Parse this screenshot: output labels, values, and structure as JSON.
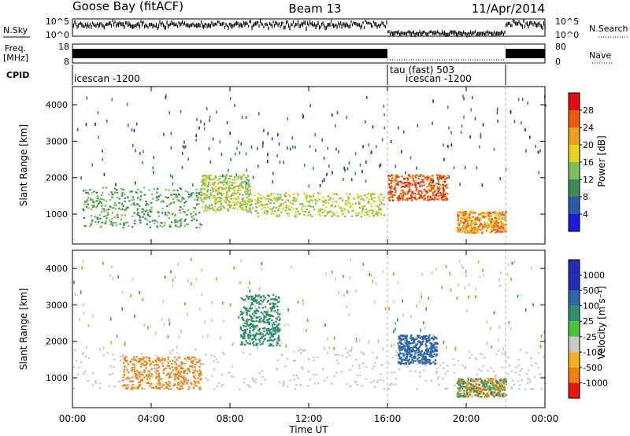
{
  "header": {
    "site": "Goose Bay (fitACF)",
    "beam": "Beam 13",
    "date": "11/Apr/2014"
  },
  "strip": {
    "nsky_label": "N.Sky",
    "nsky_top": "10^5",
    "nsky_bottom": "10^0",
    "nsearch_top": "10^5",
    "nsearch_bottom": "10^0",
    "nsearch_label": "N.Search",
    "freq_label": "Freq.",
    "freq_unit": "[MHz]",
    "freq_top": "18",
    "freq_bottom": "8",
    "nave_top": "80",
    "nave_bottom": "0",
    "nave_label": "Nave",
    "cpid_label": "CPID",
    "cpid_1": "icescan -1200",
    "cpid_2": "tau (fast) 503",
    "cpid_3": "icescan -1200"
  },
  "colorbars": {
    "power": {
      "label": "Power [dB]",
      "ticks": [
        "4",
        "8",
        "12",
        "16",
        "20",
        "24",
        "28"
      ],
      "colors": [
        "#1a1adc",
        "#2f58a6",
        "#3c8a55",
        "#7fbf5c",
        "#e8d21e",
        "#f0a01e",
        "#ef5a10",
        "#e01010"
      ]
    },
    "velocity": {
      "label": "Velocity [m s⁻¹]",
      "ticks": [
        "1000",
        "500",
        "100",
        "25",
        "-25",
        "-100",
        "-500",
        "-1000"
      ],
      "colors": [
        "#1f2fb0",
        "#2f66a8",
        "#2f8f6a",
        "#49c33c",
        "#c8c8c8",
        "#f0b020",
        "#ef8410",
        "#e81810"
      ]
    }
  },
  "chart_data": [
    {
      "type": "heatmap",
      "panel": "power",
      "title": "",
      "xlabel": "Time UT",
      "ylabel": "Slant Range [km]",
      "x_ticks": [
        "00:00",
        "04:00",
        "08:00",
        "12:00",
        "16:00",
        "20:00",
        "00:00"
      ],
      "y_ticks": [
        1000,
        2000,
        3000,
        4000
      ],
      "xlim_hours": [
        0,
        24
      ],
      "ylim_km": [
        180,
        4500
      ],
      "colorbar": "Power [dB]",
      "features": [
        {
          "t_start": 0.5,
          "t_end": 6.5,
          "range_km": [
            650,
            1750
          ],
          "power_db": [
            8,
            16
          ]
        },
        {
          "t_start": 6.5,
          "t_end": 9.0,
          "range_km": [
            1100,
            2100
          ],
          "power_db": [
            12,
            18
          ]
        },
        {
          "t_start": 9.0,
          "t_end": 15.8,
          "range_km": [
            950,
            1600
          ],
          "power_db": [
            12,
            20
          ]
        },
        {
          "t_start": 16.0,
          "t_end": 19.0,
          "range_km": [
            1400,
            2100
          ],
          "power_db": [
            22,
            30
          ]
        },
        {
          "t_start": 19.5,
          "t_end": 22.0,
          "range_km": [
            500,
            1100
          ],
          "power_db": [
            18,
            28
          ]
        }
      ]
    },
    {
      "type": "heatmap",
      "panel": "velocity",
      "title": "",
      "xlabel": "Time UT",
      "ylabel": "Slant Range [km]",
      "x_ticks": [
        "00:00",
        "04:00",
        "08:00",
        "12:00",
        "16:00",
        "20:00",
        "00:00"
      ],
      "y_ticks": [
        1000,
        2000,
        3000,
        4000
      ],
      "xlim_hours": [
        0,
        24
      ],
      "ylim_km": [
        180,
        4500
      ],
      "colorbar": "Velocity [m s⁻¹]",
      "features": [
        {
          "t_start": 2.5,
          "t_end": 6.5,
          "range_km": [
            700,
            1600
          ],
          "velocity_ms": [
            -500,
            -100
          ]
        },
        {
          "t_start": 0.0,
          "t_end": 24.0,
          "range_km": [
            700,
            1800
          ],
          "velocity_ms": [
            -25,
            25
          ]
        },
        {
          "t_start": 8.5,
          "t_end": 10.5,
          "range_km": [
            1900,
            3300
          ],
          "velocity_ms": [
            100,
            500
          ]
        },
        {
          "t_start": 16.5,
          "t_end": 18.5,
          "range_km": [
            1400,
            2200
          ],
          "velocity_ms": [
            500,
            1000
          ]
        },
        {
          "t_start": 19.5,
          "t_end": 22.0,
          "range_km": [
            500,
            1000
          ],
          "velocity_ms": [
            -500,
            500
          ]
        }
      ]
    }
  ]
}
